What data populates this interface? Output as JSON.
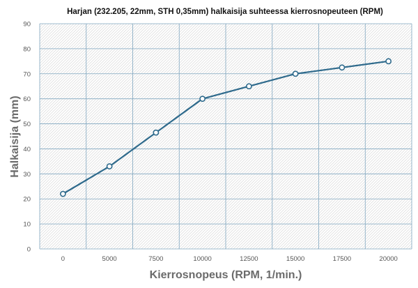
{
  "chart_data": {
    "type": "line",
    "title": "Harjan (232.205, 22mm, STH 0,35mm) halkaisija suhteessa kierrosnopeuteen (RPM)",
    "xlabel": "Kierrosnopeus (RPM, 1/min.)",
    "ylabel": "Halkaisija (mm)",
    "categories": [
      "0",
      "5000",
      "7500",
      "10000",
      "12500",
      "15000",
      "17500",
      "20000"
    ],
    "yticks": [
      "0",
      "10",
      "20",
      "30",
      "40",
      "50",
      "60",
      "70",
      "80",
      "90"
    ],
    "ylim": [
      0,
      90
    ],
    "grid": true,
    "series": [
      {
        "values": [
          22,
          33,
          46.5,
          60,
          65,
          70,
          72.5,
          75
        ]
      }
    ],
    "colors": {
      "line": "#2e6a8c",
      "grid": "#7fa6bf",
      "hatch": "#d9d9d9"
    }
  }
}
